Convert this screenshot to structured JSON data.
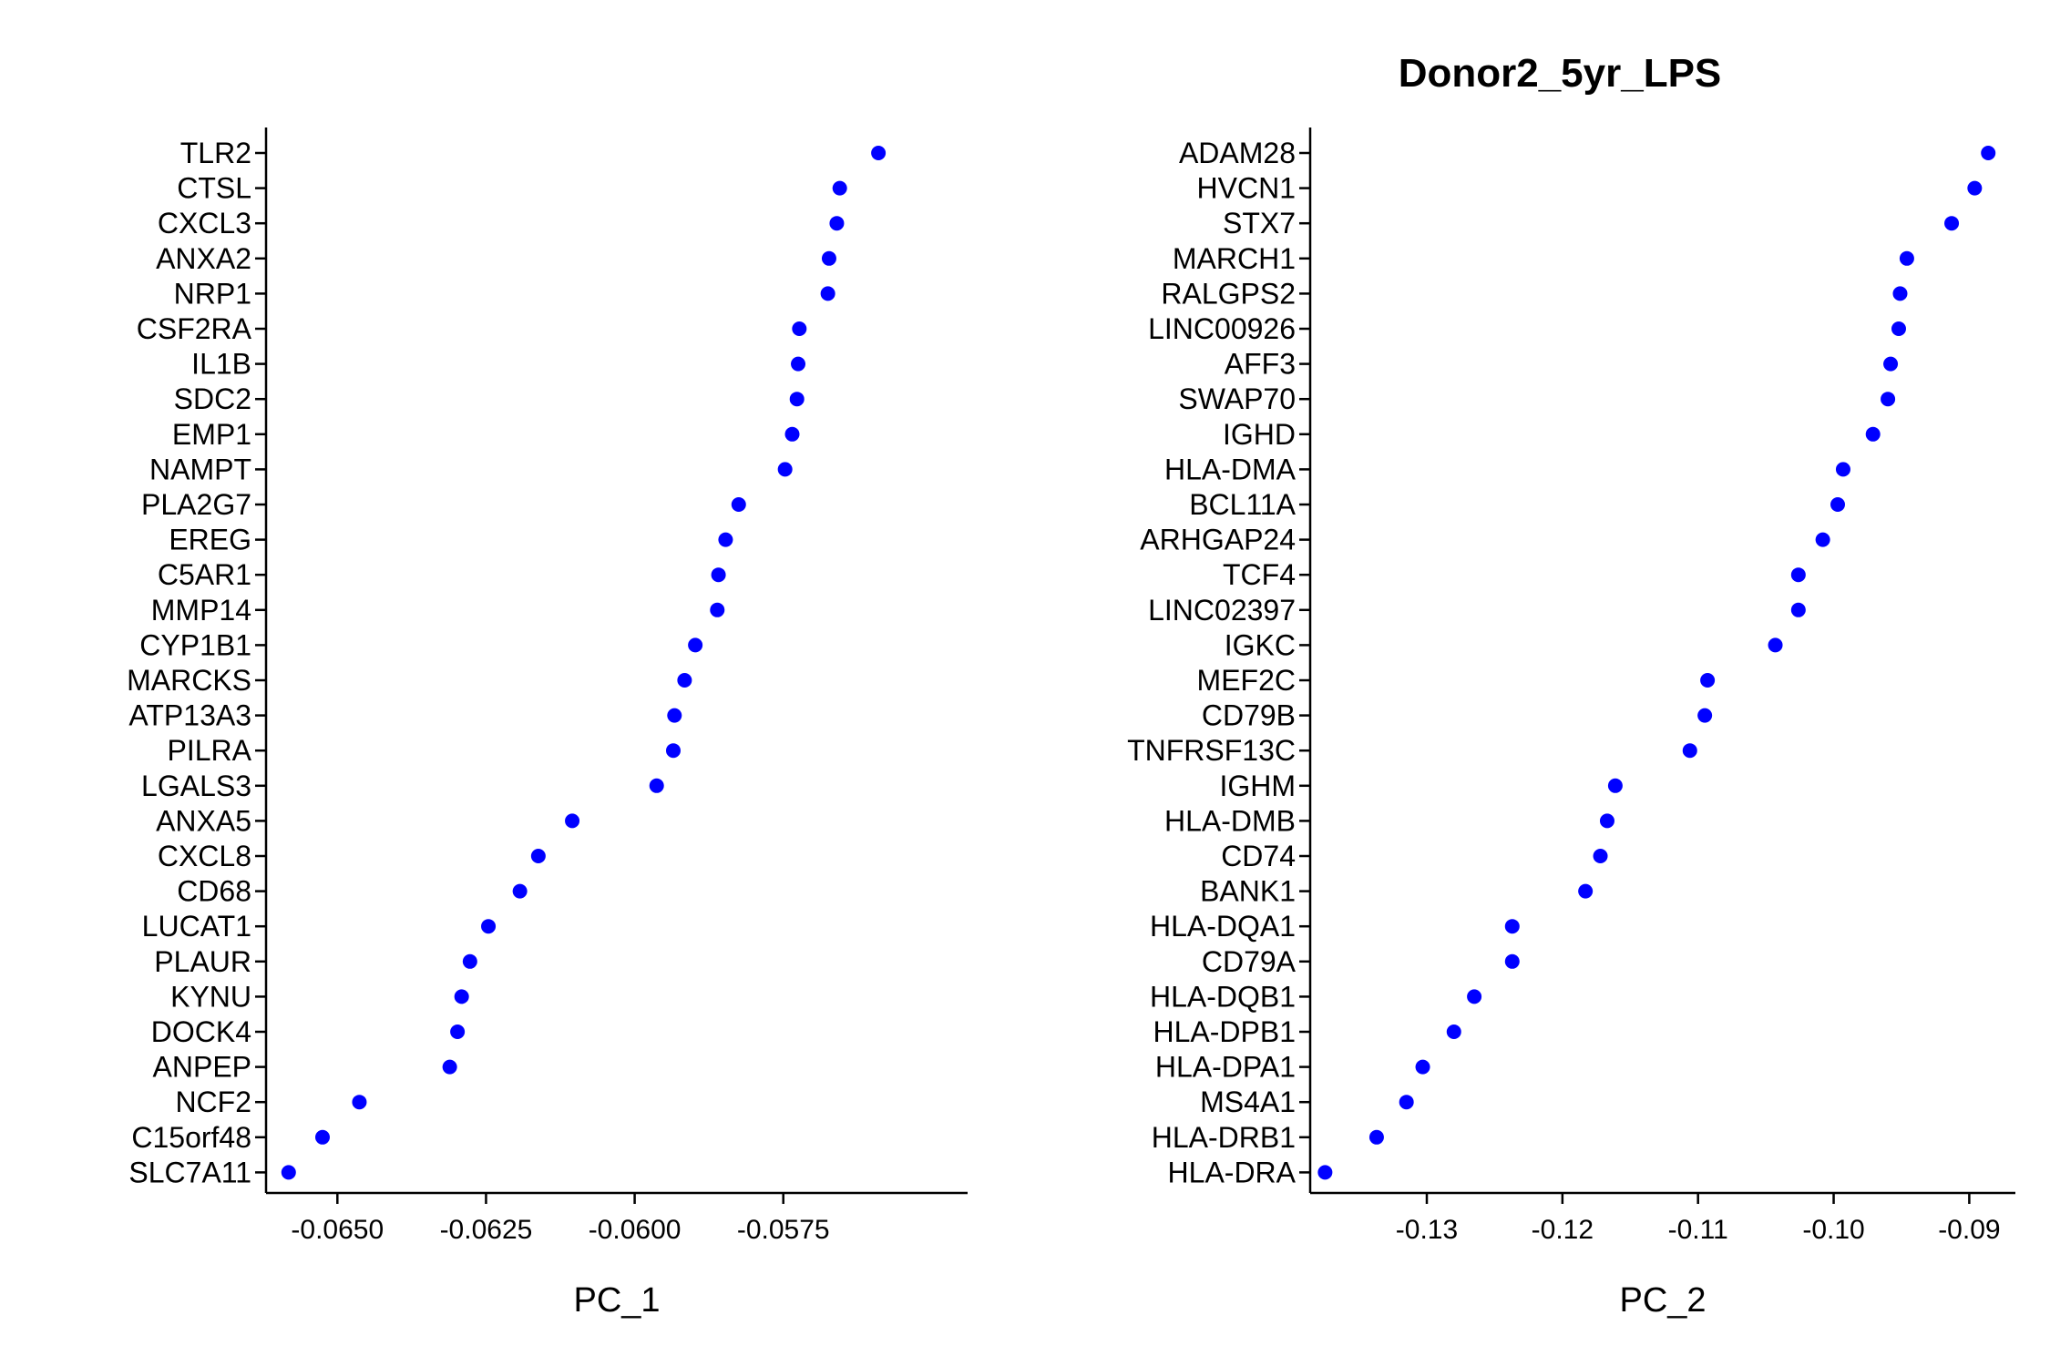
{
  "chart_data": [
    {
      "type": "scatter",
      "title": "",
      "xlabel": "PC_1",
      "ylabel": "",
      "xlim": [
        -0.0662,
        -0.0544
      ],
      "xticks": [
        -0.065,
        -0.0625,
        -0.06,
        -0.0575
      ],
      "xtick_labels": [
        "-0.0650",
        "-0.0625",
        "-0.0600",
        "-0.0575"
      ],
      "grid": false,
      "point_color": "#0000ff",
      "genes": [
        "TLR2",
        "CTSL",
        "CXCL3",
        "ANXA2",
        "NRP1",
        "CSF2RA",
        "IL1B",
        "SDC2",
        "EMP1",
        "NAMPT",
        "PLA2G7",
        "EREG",
        "C5AR1",
        "MMP14",
        "CYP1B1",
        "MARCKS",
        "ATP13A3",
        "PILRA",
        "LGALS3",
        "ANXA5",
        "CXCL8",
        "CD68",
        "LUCAT1",
        "PLAUR",
        "KYNU",
        "DOCK4",
        "ANPEP",
        "NCF2",
        "C15orf48",
        "SLC7A11"
      ],
      "values": [
        -0.0559,
        -0.05655,
        -0.0566,
        -0.05673,
        -0.05675,
        -0.05723,
        -0.05725,
        -0.05727,
        -0.05735,
        -0.05747,
        -0.05825,
        -0.05847,
        -0.05859,
        -0.05861,
        -0.05898,
        -0.05916,
        -0.05933,
        -0.05935,
        -0.05963,
        -0.06105,
        -0.06162,
        -0.06193,
        -0.06246,
        -0.06277,
        -0.06291,
        -0.06298,
        -0.06311,
        -0.06463,
        -0.06525,
        -0.06582
      ]
    },
    {
      "type": "scatter",
      "title": "Donor2_5yr_LPS",
      "xlabel": "PC_2",
      "ylabel": "",
      "xlim": [
        -0.1386,
        -0.0866
      ],
      "xticks": [
        -0.13,
        -0.12,
        -0.11,
        -0.1,
        -0.09
      ],
      "xtick_labels": [
        "-0.13",
        "-0.12",
        "-0.11",
        "-0.10",
        "-0.09"
      ],
      "grid": false,
      "point_color": "#0000ff",
      "genes": [
        "ADAM28",
        "HVCN1",
        "STX7",
        "MARCH1",
        "RALGPS2",
        "LINC00926",
        "AFF3",
        "SWAP70",
        "IGHD",
        "HLA-DMA",
        "BCL11A",
        "ARHGAP24",
        "TCF4",
        "LINC02397",
        "IGKC",
        "MEF2C",
        "CD79B",
        "TNFRSF13C",
        "IGHM",
        "HLA-DMB",
        "CD74",
        "BANK1",
        "HLA-DQA1",
        "CD79A",
        "HLA-DQB1",
        "HLA-DPB1",
        "HLA-DPA1",
        "MS4A1",
        "HLA-DRB1",
        "HLA-DRA"
      ],
      "values": [
        -0.0886,
        -0.0896,
        -0.0913,
        -0.0946,
        -0.0951,
        -0.0952,
        -0.0958,
        -0.096,
        -0.0971,
        -0.0993,
        -0.0997,
        -0.1008,
        -0.1026,
        -0.1026,
        -0.1043,
        -0.1093,
        -0.1095,
        -0.1106,
        -0.1161,
        -0.1167,
        -0.1172,
        -0.1183,
        -0.1237,
        -0.1237,
        -0.1265,
        -0.128,
        -0.1303,
        -0.1315,
        -0.1337,
        -0.1375
      ]
    }
  ]
}
